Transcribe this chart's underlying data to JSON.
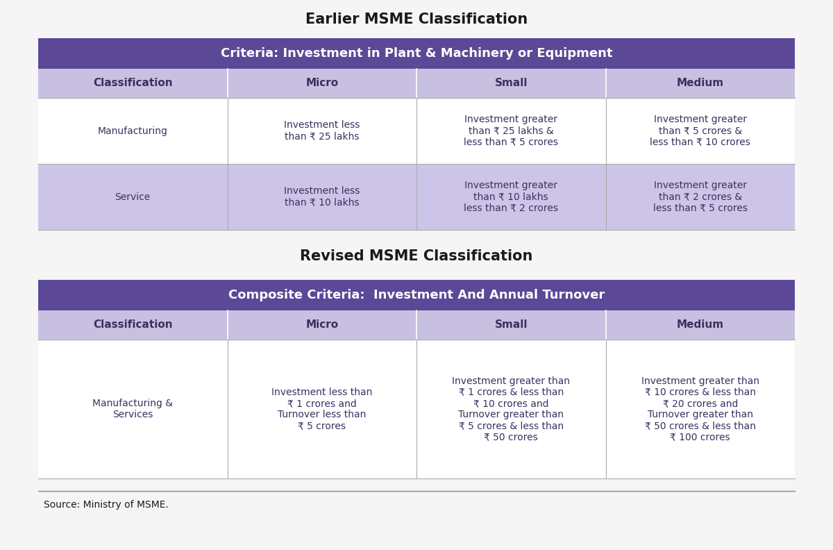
{
  "bg_color": "#f5f5f5",
  "title1": "Earlier MSME Classification",
  "title2": "Revised MSME Classification",
  "source": "Source: Ministry of MSME.",
  "header_bg": "#5b4896",
  "header_text_color": "#ffffff",
  "subheader_bg": "#c8c0e0",
  "row_odd_bg": "#ffffff",
  "row_even_bg": "#cdc5e8",
  "border_color": "#aaaaaa",
  "text_color": "#3a3060",
  "title_color": "#1a1a1a",
  "table1": {
    "criteria_header": "Criteria: Investment in Plant & Machinery or Equipment",
    "col_headers": [
      "Classification",
      "Micro",
      "Small",
      "Medium"
    ],
    "rows": [
      {
        "bg": "#ffffff",
        "cells": [
          "Manufacturing",
          "Investment less\nthan ₹ 25 lakhs",
          "Investment greater\nthan ₹ 25 lakhs &\nless than ₹ 5 crores",
          "Investment greater\nthan ₹ 5 crores &\nless than ₹ 10 crores"
        ]
      },
      {
        "bg": "#cdc5e8",
        "cells": [
          "Service",
          "Investment less\nthan ₹ 10 lakhs",
          "Investment greater\nthan ₹ 10 lakhs\nless than ₹ 2 crores",
          "Investment greater\nthan ₹ 2 crores &\nless than ₹ 5 crores"
        ]
      }
    ]
  },
  "table2": {
    "criteria_header": "Composite Criteria:  Investment And Annual Turnover",
    "col_headers": [
      "Classification",
      "Micro",
      "Small",
      "Medium"
    ],
    "rows": [
      {
        "bg": "#ffffff",
        "cells": [
          "Manufacturing &\nServices",
          "Investment less than\n₹ 1 crores and\nTurnover less than\n₹ 5 crores",
          "Investment greater than\n₹ 1 crores & less than\n₹ 10 crores and\nTurnover greater than\n₹ 5 crores & less than\n₹ 50 crores",
          "Investment greater than\n₹ 10 crores & less than\n₹ 20 crores and\nTurnover greater than\n₹ 50 crores & less than\n₹ 100 crores"
        ]
      }
    ]
  }
}
